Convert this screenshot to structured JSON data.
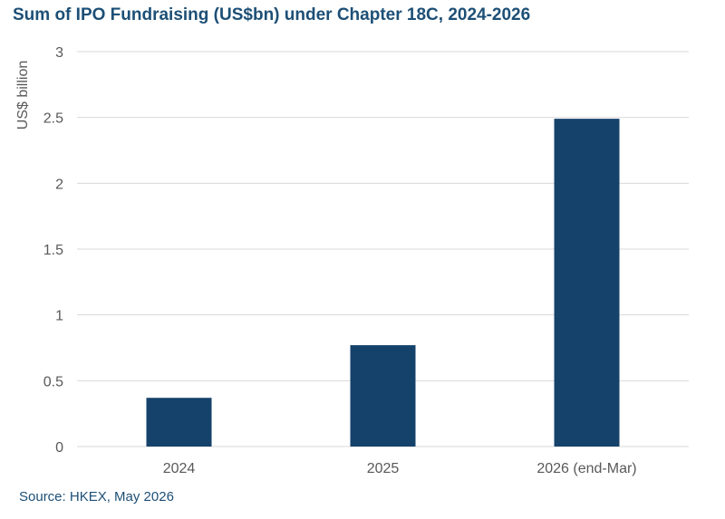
{
  "title": "Sum of IPO Fundraising (US$bn) under Chapter 18C, 2024-2026",
  "source": "Source: HKEX, May 2026",
  "colors": {
    "bar": "#15426b",
    "grid": "#d9d9d9",
    "axis_text": "#595959",
    "title": "#1d4f76"
  },
  "chart_data": {
    "type": "bar",
    "title": "Sum of IPO Fundraising (US$bn) under Chapter 18C, 2024-2026",
    "xlabel": "",
    "ylabel": "US$ billion",
    "categories": [
      "2024",
      "2025",
      "2026 (end-Mar)"
    ],
    "values": [
      0.37,
      0.77,
      2.49
    ],
    "ylim": [
      0,
      3
    ],
    "yticks": [
      "0",
      "0.5",
      "1",
      "1.5",
      "2",
      "2.5",
      "3"
    ],
    "grid": true,
    "legend": "none"
  }
}
